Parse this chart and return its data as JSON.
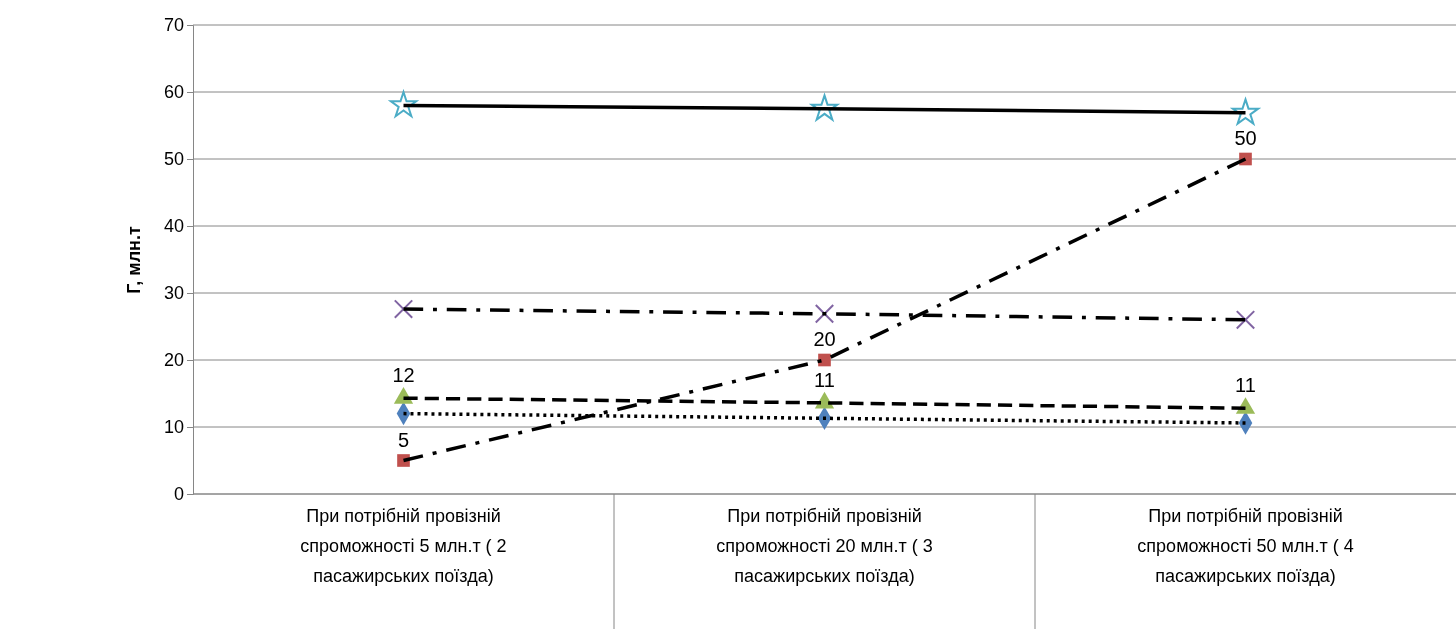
{
  "chart_data": {
    "type": "line",
    "ylabel": "Г, млн.т",
    "categories": [
      "При потрібній провізній спроможності 5 млн.т ( 2 пасажирських поїзда)",
      "При потрібній провізній спроможності 20 млн.т ( 3 пасажирських поїзда)",
      "При потрібній провізній спроможності 50 млн.т ( 4 пасажирських поїзда)"
    ],
    "ylim": [
      0,
      70
    ],
    "yticks": [
      0,
      10,
      20,
      30,
      40,
      50,
      60,
      70
    ],
    "grid": "y",
    "series": [
      {
        "color": "#4f81bd",
        "marker": "diamond",
        "line_style": "dotted",
        "values": [
          12,
          11.3,
          10.6
        ],
        "value_labels": [
          "12",
          "11",
          "11"
        ]
      },
      {
        "color": "#9bbb59",
        "marker": "triangle",
        "line_style": "dashed",
        "values": [
          14.3,
          13.6,
          12.8
        ]
      },
      {
        "color": "#c0504d",
        "marker": "square",
        "line_style": "dashdot",
        "values": [
          5,
          20,
          50
        ],
        "value_labels": [
          "5",
          "20",
          "50"
        ]
      },
      {
        "color": "#4bacc6",
        "marker": "star",
        "line_style": "solid",
        "values": [
          58,
          57.5,
          56.9
        ]
      },
      {
        "color": "#8064a2",
        "marker": "cross",
        "line_style": "dashdot",
        "values": [
          27.6,
          26.9,
          26
        ]
      }
    ]
  }
}
